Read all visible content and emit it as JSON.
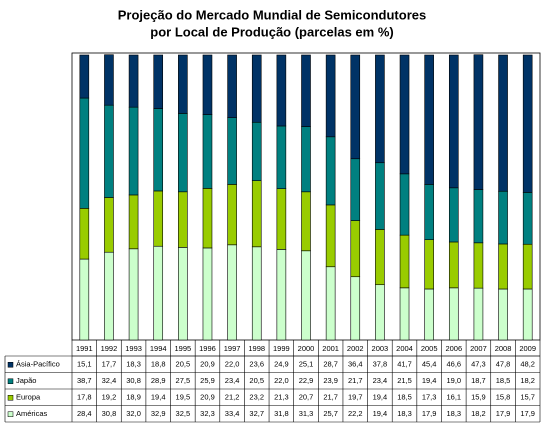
{
  "chart_data": {
    "type": "stacked_bar",
    "title": [
      "Projeção do Mercado Mundial de Semicondutores",
      "por Local de Produção (parcelas em %)"
    ],
    "categories": [
      "1991",
      "1992",
      "1993",
      "1994",
      "1995",
      "1996",
      "1997",
      "1998",
      "1999",
      "2000",
      "2001",
      "2002",
      "2003",
      "2004",
      "2005",
      "2006",
      "2007",
      "2008",
      "2009"
    ],
    "ylim": [
      0,
      100
    ],
    "series": [
      {
        "name": "Ásia-Pacífico",
        "color": "#003366",
        "values": [
          15.1,
          17.7,
          18.3,
          18.8,
          20.5,
          20.9,
          22.0,
          23.6,
          24.9,
          25.1,
          28.7,
          36.4,
          37.8,
          41.7,
          45.4,
          46.6,
          47.3,
          47.8,
          48.2
        ],
        "value_labels": [
          "15,1",
          "17,7",
          "18,3",
          "18,8",
          "20,5",
          "20,9",
          "22,0",
          "23,6",
          "24,9",
          "25,1",
          "28,7",
          "36,4",
          "37,8",
          "41,7",
          "45,4",
          "46,6",
          "47,3",
          "47,8",
          "48,2"
        ]
      },
      {
        "name": "Japão",
        "color": "#008080",
        "values": [
          38.7,
          32.4,
          30.8,
          28.9,
          27.5,
          25.9,
          23.4,
          20.5,
          22.0,
          22.9,
          23.9,
          21.7,
          23.4,
          21.5,
          19.4,
          19.0,
          18.7,
          18.5,
          18.2
        ],
        "value_labels": [
          "38,7",
          "32,4",
          "30,8",
          "28,9",
          "27,5",
          "25,9",
          "23,4",
          "20,5",
          "22,0",
          "22,9",
          "23,9",
          "21,7",
          "23,4",
          "21,5",
          "19,4",
          "19,0",
          "18,7",
          "18,5",
          "18,2"
        ]
      },
      {
        "name": "Europa",
        "color": "#99cc00",
        "values": [
          17.8,
          19.2,
          18.9,
          19.4,
          19.5,
          20.9,
          21.2,
          23.2,
          21.3,
          20.7,
          21.7,
          19.7,
          19.4,
          18.5,
          17.3,
          16.1,
          15.9,
          15.8,
          15.7
        ],
        "value_labels": [
          "17,8",
          "19,2",
          "18,9",
          "19,4",
          "19,5",
          "20,9",
          "21,2",
          "23,2",
          "21,3",
          "20,7",
          "21,7",
          "19,7",
          "19,4",
          "18,5",
          "17,3",
          "16,1",
          "15,9",
          "15,8",
          "15,7"
        ]
      },
      {
        "name": "Américas",
        "color": "#ccffcc",
        "values": [
          28.4,
          30.8,
          32.0,
          32.9,
          32.5,
          32.3,
          33.4,
          32.7,
          31.8,
          31.3,
          25.7,
          22.2,
          19.4,
          18.3,
          17.9,
          18.3,
          18.2,
          17.9,
          17.9
        ],
        "value_labels": [
          "28,4",
          "30,8",
          "32,0",
          "32,9",
          "32,5",
          "32,3",
          "33,4",
          "32,7",
          "31,8",
          "31,3",
          "25,7",
          "22,2",
          "19,4",
          "18,3",
          "17,9",
          "18,3",
          "18,2",
          "17,9",
          "17,9"
        ]
      }
    ]
  }
}
